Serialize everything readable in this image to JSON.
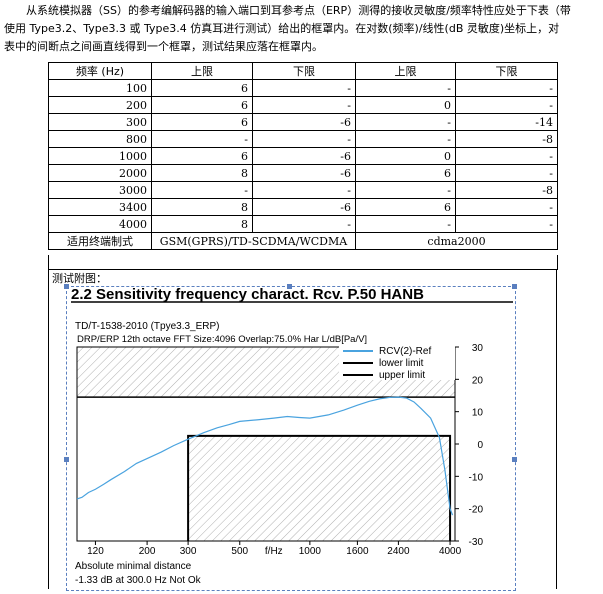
{
  "intro": {
    "line1": "从系统模拟器（SS）的参考编解码器的输入端口到耳参考点（ERP）测得的接收灵敏度/频率特性应处于下表（带",
    "line2": "使用 Type3.2、Type3.3 或 Type3.4 仿真耳进行测试）给出的框罩内。在对数(频率)/线性(dB 灵敏度)坐标上，对",
    "line3": "表中的间断点之间画直线得到一个框罩，测试结果应落在框罩内。"
  },
  "table": {
    "headers": [
      "频率 (Hz)",
      "上限",
      "下限",
      "上限",
      "下限"
    ],
    "rows": [
      [
        "100",
        "6",
        "-",
        "-",
        "-"
      ],
      [
        "200",
        "6",
        "-",
        "0",
        "-"
      ],
      [
        "300",
        "6",
        "-6",
        "-",
        "-14"
      ],
      [
        "800",
        "-",
        "-",
        "-",
        "-8"
      ],
      [
        "1000",
        "6",
        "-6",
        "0",
        "-"
      ],
      [
        "2000",
        "8",
        "-6",
        "6",
        "-"
      ],
      [
        "3000",
        "-",
        "-",
        "-",
        "-8"
      ],
      [
        "3400",
        "8",
        "-6",
        "6",
        "-"
      ],
      [
        "4000",
        "8",
        "-",
        "-",
        "-"
      ]
    ],
    "footer_label": "适用终端制式",
    "footer_gsm": "GSM(GPRS)/TD-SCDMA/WCDMA",
    "footer_cdma": "cdma2000"
  },
  "caption": "测试附图：",
  "chart_data": {
    "type": "line",
    "title": "2.2 Sensitivity frequency charact. Rcv. P.50 HANB",
    "subtitle1": "TD/T-1538-2010 (Tpye3.3_ERP)",
    "subtitle2": "DRP/ERP  12th octave  FFT Size:4096  Overlap:75.0%  Har L/dB[Pa/V]",
    "xlabel": "f/Hz",
    "x_scale": "log",
    "xlim": [
      100,
      4200
    ],
    "ylim": [
      -30,
      30
    ],
    "x_ticks": [
      "120",
      "200",
      "300",
      "500",
      "1000",
      "1600",
      "2400",
      "4000"
    ],
    "x_tick_values": [
      120,
      200,
      300,
      500,
      1000,
      1600,
      2400,
      4000
    ],
    "y_ticks": [
      30,
      20,
      10,
      0,
      -10,
      -20,
      -30
    ],
    "legend_position": "top-right",
    "series": [
      {
        "name": "RCV(2)-Ref",
        "color": "#4aa3df",
        "x": [
          100,
          105,
          112,
          120,
          130,
          140,
          160,
          180,
          200,
          230,
          260,
          300,
          350,
          400,
          450,
          500,
          600,
          700,
          800,
          900,
          1000,
          1200,
          1400,
          1600,
          1800,
          2000,
          2200,
          2400,
          2600,
          2800,
          3000,
          3300,
          3600,
          3800,
          4000,
          4100
        ],
        "values": [
          -17,
          -16.5,
          -15,
          -14,
          -12.5,
          -11,
          -8.5,
          -6,
          -4.5,
          -2.5,
          -0.5,
          1.5,
          3.5,
          5,
          6,
          7,
          7.5,
          8,
          8.5,
          8.2,
          8,
          9,
          10.5,
          12,
          13.2,
          14,
          14.4,
          14.5,
          14.2,
          13,
          11,
          8,
          2,
          -8,
          -20,
          -22
        ]
      },
      {
        "name": "lower limit",
        "color": "#000000",
        "x": [
          300,
          300,
          4000,
          4000
        ],
        "values": [
          -30,
          2.5,
          2.5,
          -30
        ]
      },
      {
        "name": "upper limit",
        "color": "#000000",
        "x": [
          100,
          4200
        ],
        "values": [
          14.5,
          14.5
        ]
      }
    ],
    "footnote1": "Absolute minimal distance",
    "footnote2": "-1.33 dB at 300.0 Hz Not Ok"
  }
}
